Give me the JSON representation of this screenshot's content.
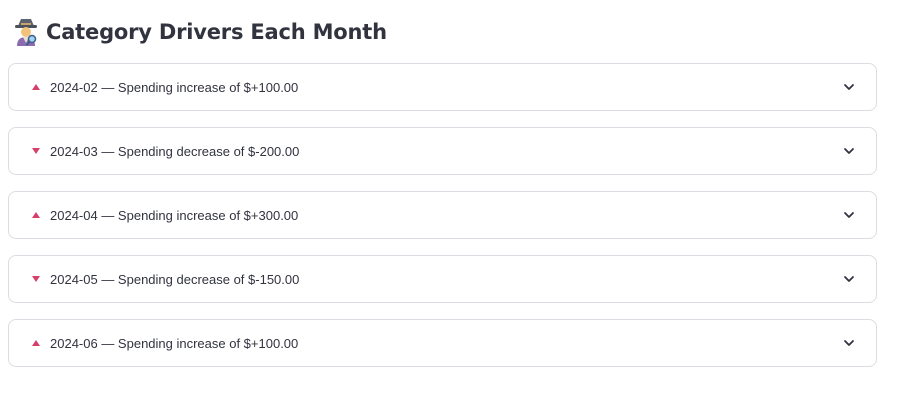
{
  "header": {
    "title": "Category Drivers Each Month",
    "icon": "detective-icon"
  },
  "expanders": [
    {
      "direction": "up",
      "label": "2024-02 — Spending increase of $+100.00"
    },
    {
      "direction": "down",
      "label": "2024-03 — Spending decrease of $-200.00"
    },
    {
      "direction": "up",
      "label": "2024-04 — Spending increase of $+300.00"
    },
    {
      "direction": "down",
      "label": "2024-05 — Spending decrease of $-150.00"
    },
    {
      "direction": "up",
      "label": "2024-06 — Spending increase of $+100.00"
    }
  ],
  "colors": {
    "arrow": "#d6406b",
    "border": "#dcdde2",
    "text": "#31333f"
  }
}
